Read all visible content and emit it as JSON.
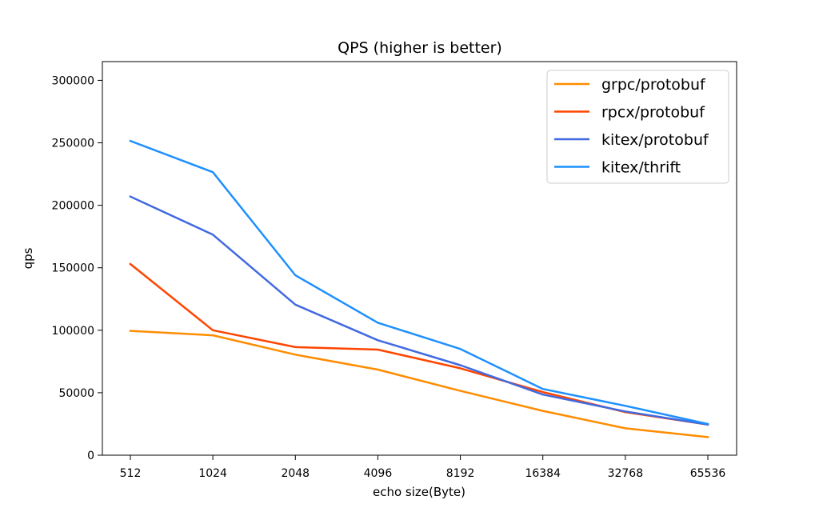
{
  "chart_data": {
    "type": "line",
    "title": "QPS (higher is better)",
    "xlabel": "echo size(Byte)",
    "ylabel": "qps",
    "categories": [
      "512",
      "1024",
      "2048",
      "4096",
      "8192",
      "16384",
      "32768",
      "65536"
    ],
    "ylim": [
      0,
      315000
    ],
    "yticks": [
      0,
      50000,
      100000,
      150000,
      200000,
      250000,
      300000
    ],
    "grid": false,
    "legend_position": "top-right",
    "series": [
      {
        "name": "grpc/protobuf",
        "color": "#ff8c00",
        "values": [
          99500,
          96000,
          80500,
          68500,
          51500,
          35500,
          21500,
          14500
        ]
      },
      {
        "name": "rpcx/protobuf",
        "color": "#ff4500",
        "values": [
          153000,
          100000,
          86500,
          84500,
          69500,
          50500,
          34500,
          24500
        ]
      },
      {
        "name": "kitex/protobuf",
        "color": "#4169e1",
        "values": [
          207000,
          176500,
          120500,
          92000,
          72000,
          48500,
          35000,
          24500
        ]
      },
      {
        "name": "kitex/thrift",
        "color": "#1e90ff",
        "values": [
          251500,
          226500,
          144000,
          106000,
          85000,
          53000,
          39500,
          25000
        ]
      }
    ]
  }
}
